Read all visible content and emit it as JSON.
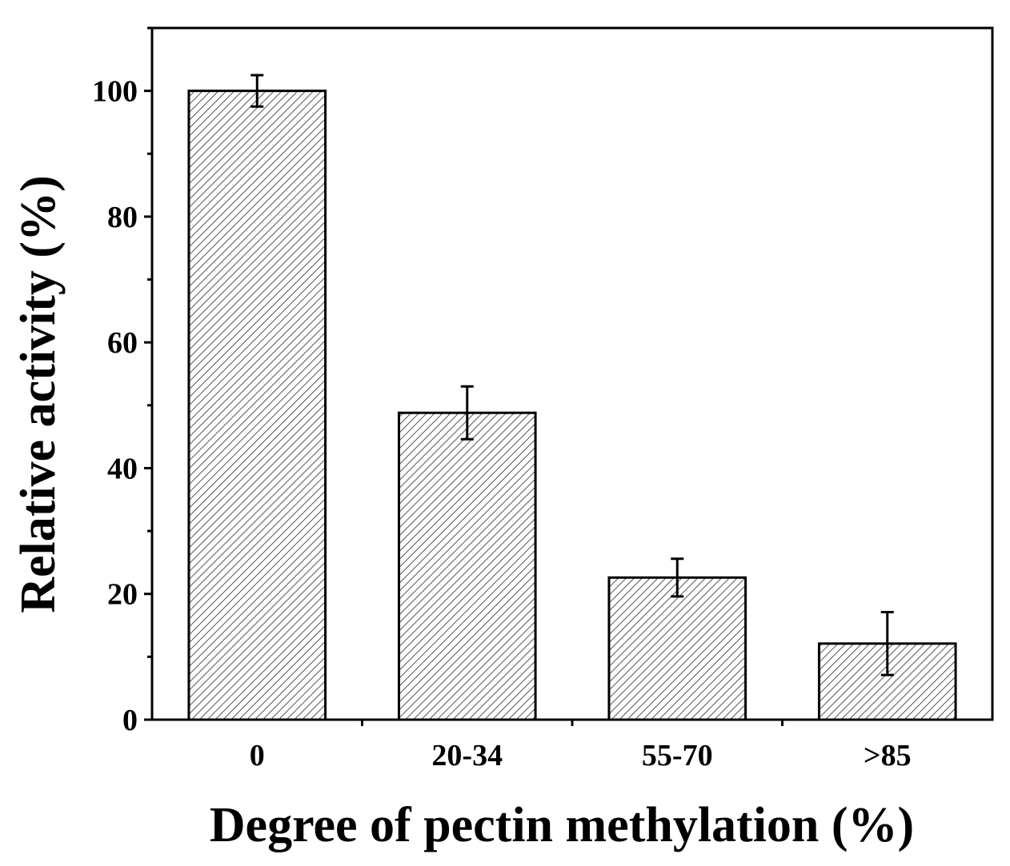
{
  "chart_data": {
    "type": "bar",
    "title": "",
    "xlabel": "Degree of pectin methylation (%)",
    "ylabel": "Relative activity (%)",
    "categories": [
      "0",
      "20-34",
      "55-70",
      ">85"
    ],
    "values": [
      100,
      48.8,
      22.6,
      12.1
    ],
    "error": [
      2.5,
      4.2,
      3.0,
      5.0
    ],
    "ylim": [
      0,
      110
    ],
    "yticks": [
      0,
      20,
      40,
      60,
      80,
      100
    ],
    "yticks_labels": [
      "0",
      "20",
      "40",
      "60",
      "80",
      "100"
    ],
    "ytick_minor_step": 10,
    "grid": false,
    "bar_fill": "hatched-diagonal",
    "colors": {
      "bar_face": "#ffffff",
      "hatch": "#555555",
      "edge": "#000000",
      "axis": "#000000"
    }
  }
}
